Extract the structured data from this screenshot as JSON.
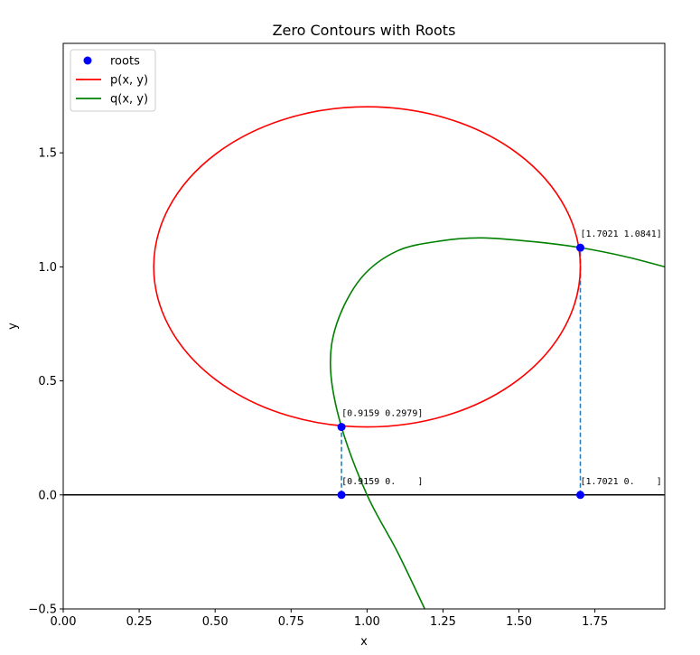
{
  "chart_data": {
    "type": "line",
    "title": "Zero Contours with Roots",
    "xlabel": "x",
    "ylabel": "y",
    "xlim": [
      0.0,
      1.98
    ],
    "ylim": [
      -0.5,
      1.98
    ],
    "xticks": [
      0.0,
      0.25,
      0.5,
      0.75,
      1.0,
      1.25,
      1.5,
      1.75
    ],
    "xtick_labels": [
      "0.00",
      "0.25",
      "0.50",
      "0.75",
      "1.00",
      "1.25",
      "1.50",
      "1.75"
    ],
    "yticks": [
      -0.5,
      0.0,
      0.5,
      1.0,
      1.5
    ],
    "ytick_labels": [
      "−0.5",
      "0.0",
      "0.5",
      "1.0",
      "1.5"
    ],
    "grid": false,
    "legend_placement": "upper-left",
    "legend": [
      {
        "label": "roots",
        "kind": "marker",
        "color": "#0000ff"
      },
      {
        "label": "p(x, y)",
        "kind": "line",
        "color": "#ff0000"
      },
      {
        "label": "q(x, y)",
        "kind": "line",
        "color": "#008000"
      }
    ],
    "series": [
      {
        "name": "p(x, y)",
        "color": "#ff0000",
        "shape": "ellipse",
        "center": [
          1.0,
          1.0
        ],
        "radii": [
          0.7021,
          0.7021
        ]
      },
      {
        "name": "q(x, y)",
        "color": "#008000",
        "points": [
          [
            1.19,
            -0.5
          ],
          [
            1.1,
            -0.25
          ],
          [
            1.0,
            0.0
          ],
          [
            0.9159,
            0.2979
          ],
          [
            0.88,
            0.55
          ],
          [
            0.9,
            0.75
          ],
          [
            0.98,
            0.95
          ],
          [
            1.1,
            1.07
          ],
          [
            1.25,
            1.115
          ],
          [
            1.38,
            1.127
          ],
          [
            1.55,
            1.11
          ],
          [
            1.7021,
            1.0841
          ],
          [
            1.85,
            1.045
          ],
          [
            1.98,
            1.0
          ]
        ]
      },
      {
        "name": "roots",
        "color": "#0000ff",
        "points": [
          [
            0.9159,
            0.2979
          ],
          [
            1.7021,
            1.0841
          ],
          [
            0.9159,
            0.0
          ],
          [
            1.7021,
            0.0
          ]
        ]
      }
    ],
    "annotations": [
      {
        "text": "[0.9159 0.2979]",
        "x": 0.9159,
        "y": 0.2979
      },
      {
        "text": "[1.7021 1.0841]",
        "x": 1.7021,
        "y": 1.0841
      },
      {
        "text": "[0.9159 0.    ]",
        "x": 0.9159,
        "y": 0.0
      },
      {
        "text": "[1.7021 0.    ]",
        "x": 1.7021,
        "y": 0.0
      }
    ],
    "drop_lines": [
      {
        "x": 0.9159,
        "y_from": 0.0,
        "y_to": 0.2979,
        "color": "#1f77b4",
        "style": "dashed"
      },
      {
        "x": 1.7021,
        "y_from": 0.0,
        "y_to": 1.0841,
        "color": "#1f77b4",
        "style": "dashed"
      }
    ],
    "hline": {
      "y": 0.0,
      "color": "#000000"
    }
  }
}
